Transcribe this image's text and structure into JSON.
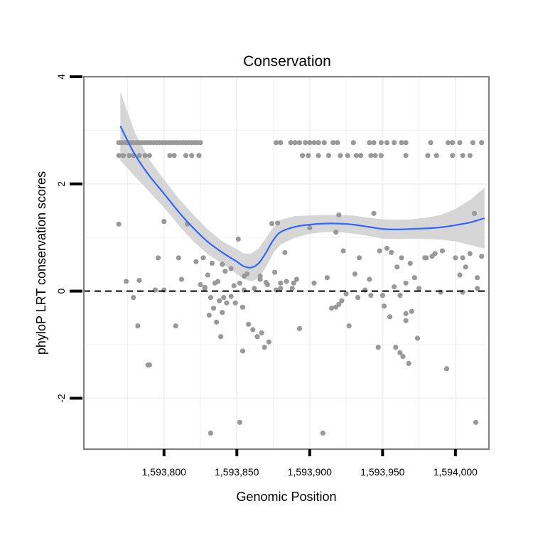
{
  "chart_data": {
    "type": "scatter",
    "title": "Conservation",
    "xlabel": "Genomic Position",
    "ylabel": "phyloP LRT conservation scores",
    "xlim": [
      1593745,
      1594023
    ],
    "ylim": [
      -2.95,
      4.0
    ],
    "x_ticks": [
      1593800,
      1593850,
      1593900,
      1593950,
      1594000
    ],
    "x_tick_labels": [
      "1,593,800",
      "1,593,850",
      "1,593,900",
      "1,593,950",
      "1,594,000"
    ],
    "y_ticks": [
      -2,
      0,
      2,
      4
    ],
    "y_tick_labels": [
      "-2",
      "0",
      "2",
      "4"
    ],
    "grid": true,
    "reference_line": {
      "y": 0,
      "style": "dashed"
    },
    "colors": {
      "points": "#999999",
      "smooth": "#3366ff",
      "band": "#d6d6d6",
      "frame": "#7f7f7f"
    },
    "series": [
      {
        "kind": "points",
        "x": [
          1593769,
          1593771,
          1593773,
          1593775,
          1593777,
          1593779,
          1593781,
          1593783,
          1593785,
          1593787,
          1593789,
          1593791,
          1593793,
          1593795,
          1593797,
          1593799,
          1593801,
          1593803,
          1593805,
          1593807,
          1593809,
          1593811,
          1593813,
          1593815,
          1593817,
          1593819,
          1593821,
          1593823,
          1593825,
          1593877,
          1593880,
          1593887,
          1593890,
          1593893,
          1593897,
          1593900,
          1593903,
          1593906,
          1593910,
          1593916,
          1593919,
          1593930,
          1593941,
          1593944,
          1593949,
          1593953,
          1593958,
          1593963,
          1593966,
          1593983,
          1593995,
          1593998,
          1594003,
          1594012,
          1594018,
          1593769,
          1593772,
          1593776,
          1593779,
          1593783,
          1593787,
          1593790,
          1593804,
          1593807,
          1593815,
          1593819,
          1593824,
          1593895,
          1593899,
          1593906,
          1593913,
          1593921,
          1593926,
          1593932,
          1593935,
          1593942,
          1593945,
          1593949,
          1593966,
          1593981,
          1593987,
          1593998,
          1594005,
          1594010,
          1593769,
          1593774,
          1593783,
          1593796,
          1593800,
          1593810,
          1593812,
          1593816,
          1593822,
          1593827,
          1593828,
          1593830,
          1593833,
          1593835,
          1593837,
          1593840,
          1593842,
          1593846,
          1593848,
          1593851,
          1593852,
          1593855,
          1593857,
          1593866,
          1593870,
          1593874,
          1593876,
          1593878,
          1593880,
          1593883,
          1593889,
          1593900,
          1593903,
          1593912,
          1593918,
          1593920,
          1593923,
          1593931,
          1593934,
          1593941,
          1593944,
          1593948,
          1593953,
          1593956,
          1593960,
          1593963,
          1593966,
          1593969,
          1593972,
          1593979,
          1593984,
          1593986,
          1593991,
          1594000,
          1594003,
          1594005,
          1594007,
          1594010,
          1594013,
          1594015,
          1594018,
          1593779,
          1593790,
          1593794,
          1593800,
          1593825,
          1593828,
          1593832,
          1593834,
          1593838,
          1593840,
          1593846,
          1593855,
          1593862,
          1593866,
          1593871,
          1593877,
          1593880,
          1593884,
          1593888,
          1593891,
          1593915,
          1593920,
          1593925,
          1593933,
          1593938,
          1593942,
          1593950,
          1593958,
          1593962,
          1593966,
          1593970,
          1593975,
          1593980,
          1593990,
          1594005,
          1594015,
          1593782,
          1593808,
          1593831,
          1593836,
          1593839,
          1593841,
          1593843,
          1593849,
          1593854,
          1593861,
          1593864,
          1593867,
          1593869,
          1593872,
          1593893,
          1593918,
          1593922,
          1593927,
          1593947,
          1593951,
          1593955,
          1593959,
          1593962,
          1593964,
          1593966,
          1593968,
          1593974,
          1593789,
          1593994,
          1593832,
          1593854,
          1593909,
          1594014,
          1593852,
          1593858
        ],
        "y": [
          2.77,
          2.77,
          2.77,
          2.77,
          2.77,
          2.77,
          2.77,
          2.77,
          2.77,
          2.77,
          2.77,
          2.77,
          2.77,
          2.77,
          2.77,
          2.77,
          2.77,
          2.77,
          2.77,
          2.77,
          2.77,
          2.77,
          2.77,
          2.77,
          2.77,
          2.77,
          2.77,
          2.77,
          2.77,
          2.77,
          2.77,
          2.77,
          2.77,
          2.77,
          2.77,
          2.77,
          2.77,
          2.77,
          2.77,
          2.77,
          2.77,
          2.77,
          2.77,
          2.77,
          2.77,
          2.77,
          2.77,
          2.77,
          2.77,
          2.77,
          2.77,
          2.77,
          2.77,
          2.77,
          2.77,
          2.53,
          2.53,
          2.53,
          2.53,
          2.53,
          2.53,
          2.53,
          2.53,
          2.53,
          2.53,
          2.53,
          2.53,
          2.53,
          2.53,
          2.53,
          2.53,
          2.53,
          2.53,
          2.53,
          2.53,
          2.53,
          2.53,
          2.53,
          2.53,
          2.53,
          2.53,
          2.53,
          2.53,
          2.53,
          1.25,
          0.18,
          0.2,
          0.62,
          1.3,
          0.62,
          0.22,
          1.25,
          0.55,
          0.62,
          0.07,
          0.3,
          0.52,
          0.15,
          0.18,
          0.5,
          0.37,
          0.42,
          0.1,
          0.97,
          0.15,
          0.28,
          0.32,
          0.22,
          0.16,
          1.26,
          0.35,
          1.27,
          0.15,
          0.72,
          0.15,
          1.18,
          0.15,
          0.25,
          1.1,
          1.42,
          0.75,
          0.32,
          0.62,
          0.22,
          1.45,
          0.75,
          0.8,
          0.72,
          0.45,
          0.62,
          0.15,
          0.52,
          0.25,
          0.62,
          0.65,
          0.7,
          0.75,
          0.62,
          0.3,
          0.62,
          0.45,
          0.7,
          1.45,
          0.25,
          0.65,
          -0.12,
          -1.38,
          0.02,
          0.02,
          0.12,
          0.05,
          -0.12,
          -0.32,
          -0.18,
          -0.4,
          -0.1,
          0.02,
          0.05,
          0.28,
          0.12,
          0.02,
          0.05,
          0.18,
          0.05,
          0.22,
          -0.32,
          -0.25,
          -0.05,
          -0.12,
          0.02,
          -0.08,
          -0.08,
          0.08,
          -0.08,
          -0.42,
          -0.38,
          0.05,
          0.62,
          -0.02,
          -0.02,
          0.05,
          -0.65,
          -0.65,
          -0.45,
          -0.58,
          -0.85,
          -0.12,
          -0.22,
          -0.22,
          -0.3,
          -0.72,
          -0.85,
          -0.78,
          -1.05,
          -0.95,
          -0.7,
          -0.3,
          -0.18,
          -0.65,
          -1.05,
          -0.28,
          -0.48,
          -1.05,
          -1.15,
          -1.22,
          -0.55,
          -1.35,
          -0.88,
          -1.38,
          -1.45,
          -2.65,
          -1.12,
          -2.65,
          -2.45,
          -2.45,
          -0.62
        ]
      },
      {
        "kind": "smooth",
        "x": [
          1593770,
          1593780,
          1593790,
          1593800,
          1593810,
          1593820,
          1593830,
          1593840,
          1593850,
          1593855,
          1593860,
          1593865,
          1593870,
          1593875,
          1593880,
          1593890,
          1593900,
          1593910,
          1593920,
          1593930,
          1593940,
          1593950,
          1593960,
          1593970,
          1593980,
          1593990,
          1594000,
          1594010,
          1594020
        ],
        "y": [
          3.08,
          2.55,
          2.15,
          1.82,
          1.48,
          1.18,
          0.92,
          0.72,
          0.55,
          0.46,
          0.44,
          0.52,
          0.72,
          0.95,
          1.1,
          1.2,
          1.24,
          1.26,
          1.26,
          1.24,
          1.2,
          1.16,
          1.15,
          1.16,
          1.17,
          1.19,
          1.23,
          1.28,
          1.36
        ],
        "upper": [
          3.72,
          2.96,
          2.45,
          2.08,
          1.73,
          1.43,
          1.15,
          0.93,
          0.78,
          0.7,
          0.7,
          0.8,
          0.99,
          1.19,
          1.33,
          1.4,
          1.41,
          1.42,
          1.42,
          1.41,
          1.37,
          1.34,
          1.33,
          1.34,
          1.37,
          1.42,
          1.53,
          1.7,
          1.93
        ],
        "lower": [
          2.44,
          2.14,
          1.85,
          1.56,
          1.23,
          0.93,
          0.69,
          0.51,
          0.32,
          0.22,
          0.18,
          0.24,
          0.45,
          0.71,
          0.87,
          1.0,
          1.07,
          1.1,
          1.1,
          1.07,
          1.03,
          0.98,
          0.97,
          0.98,
          0.97,
          0.96,
          0.93,
          0.86,
          0.79
        ]
      }
    ]
  }
}
